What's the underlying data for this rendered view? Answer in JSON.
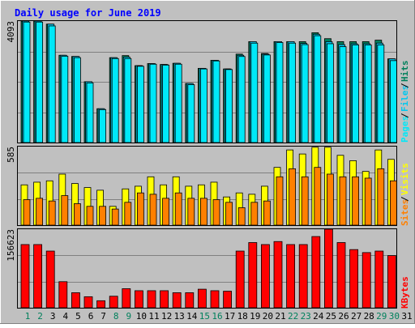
{
  "title": "Daily usage for June 2019",
  "colors": {
    "background": "#c0c0c0",
    "title": "#0000ff",
    "hits": "#00805c",
    "files": "#00c8f0",
    "pages": "#00e8f8",
    "visits": "#ffff00",
    "sites": "#ff8000",
    "kbytes": "#ff0000",
    "weekend_label": "#00805c",
    "weekday_label": "#000000"
  },
  "chart_data": [
    {
      "type": "bar",
      "name": "hits-files-pages",
      "categories": [
        "1",
        "2",
        "3",
        "4",
        "5",
        "6",
        "7",
        "8",
        "9",
        "10",
        "11",
        "12",
        "13",
        "14",
        "15",
        "16",
        "17",
        "18",
        "19",
        "20",
        "21",
        "22",
        "23",
        "24",
        "25",
        "26",
        "27",
        "28",
        "29",
        "30"
      ],
      "ylim": [
        0,
        4093
      ],
      "y_tick_label": "4093",
      "legend": [
        "Pages",
        "Files",
        "Hits"
      ],
      "series": [
        {
          "name": "Hits",
          "values": [
            4093,
            4093,
            3990,
            2940,
            2900,
            2050,
            1140,
            2860,
            2930,
            2590,
            2660,
            2630,
            2670,
            1990,
            2500,
            2770,
            2480,
            2980,
            3400,
            3000,
            3400,
            3400,
            3400,
            3700,
            3500,
            3400,
            3400,
            3400,
            3450,
            2820
          ]
        },
        {
          "name": "Files",
          "values": [
            4093,
            4093,
            3990,
            2940,
            2900,
            2050,
            1140,
            2860,
            2880,
            2590,
            2660,
            2630,
            2670,
            1990,
            2500,
            2770,
            2480,
            2940,
            3400,
            2980,
            3400,
            3400,
            3340,
            3650,
            3400,
            3300,
            3330,
            3330,
            3350,
            2820
          ]
        },
        {
          "name": "Pages",
          "values": [
            4060,
            4060,
            3930,
            2910,
            2860,
            2010,
            1110,
            2830,
            2830,
            2570,
            2640,
            2610,
            2640,
            1950,
            2480,
            2750,
            2460,
            2900,
            3350,
            2950,
            3370,
            3350,
            3300,
            3600,
            3330,
            3230,
            3290,
            3290,
            3290,
            2760
          ]
        }
      ]
    },
    {
      "type": "bar",
      "name": "visits-sites",
      "categories": [
        "1",
        "2",
        "3",
        "4",
        "5",
        "6",
        "7",
        "8",
        "9",
        "10",
        "11",
        "12",
        "13",
        "14",
        "15",
        "16",
        "17",
        "18",
        "19",
        "20",
        "21",
        "22",
        "23",
        "24",
        "25",
        "26",
        "27",
        "28",
        "29",
        "30"
      ],
      "ylim": [
        0,
        585
      ],
      "y_tick_label": "585",
      "legend": [
        "Sites",
        "Visits"
      ],
      "series": [
        {
          "name": "Visits",
          "values": [
            300,
            320,
            330,
            380,
            310,
            280,
            260,
            140,
            270,
            290,
            360,
            300,
            360,
            290,
            300,
            320,
            210,
            240,
            230,
            290,
            430,
            560,
            530,
            580,
            580,
            520,
            480,
            400,
            560,
            490
          ]
        },
        {
          "name": "Sites",
          "values": [
            190,
            200,
            180,
            220,
            160,
            140,
            140,
            120,
            170,
            240,
            230,
            200,
            240,
            200,
            200,
            190,
            170,
            130,
            170,
            180,
            360,
            420,
            360,
            430,
            380,
            360,
            360,
            350,
            420,
            330
          ]
        }
      ]
    },
    {
      "type": "bar",
      "name": "kbytes",
      "categories": [
        "1",
        "2",
        "3",
        "4",
        "5",
        "6",
        "7",
        "8",
        "9",
        "10",
        "11",
        "12",
        "13",
        "14",
        "15",
        "16",
        "17",
        "18",
        "19",
        "20",
        "21",
        "22",
        "23",
        "24",
        "25",
        "26",
        "27",
        "28",
        "29",
        "30"
      ],
      "ylim": [
        0,
        156623
      ],
      "y_tick_label": "156623",
      "legend": [
        "KBytes"
      ],
      "series": [
        {
          "name": "KBytes",
          "values": [
            126000,
            126000,
            113000,
            52000,
            30000,
            22000,
            14000,
            23000,
            38000,
            34000,
            34000,
            34000,
            30000,
            30000,
            37000,
            34000,
            33000,
            113000,
            130000,
            126000,
            132000,
            126000,
            126000,
            142000,
            156623,
            130000,
            116000,
            110000,
            113000,
            104000
          ]
        }
      ]
    }
  ],
  "x_axis": {
    "labels": [
      "1",
      "2",
      "3",
      "4",
      "5",
      "6",
      "7",
      "8",
      "9",
      "10",
      "11",
      "12",
      "13",
      "14",
      "15",
      "16",
      "17",
      "18",
      "19",
      "20",
      "21",
      "22",
      "23",
      "24",
      "25",
      "26",
      "27",
      "28",
      "29",
      "30",
      "31"
    ],
    "weekend_days": [
      "1",
      "2",
      "8",
      "9",
      "15",
      "16",
      "22",
      "23",
      "29",
      "30"
    ]
  }
}
